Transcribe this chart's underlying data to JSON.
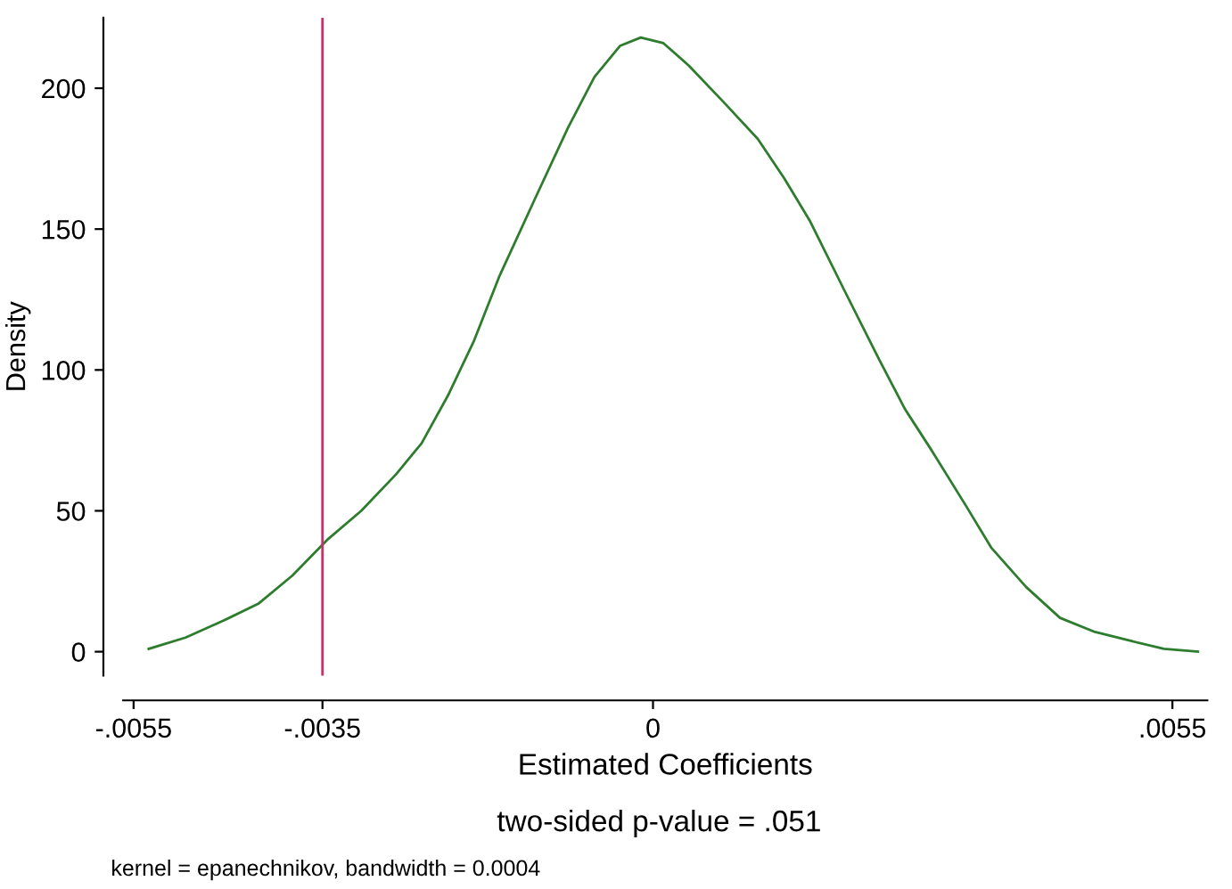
{
  "chart_data": {
    "type": "line",
    "xlabel": "Estimated Coefficients",
    "ylabel": "Density",
    "annotations": [
      "two-sided p-value = .051",
      "kernel = epanechnikov, bandwidth = 0.0004"
    ],
    "series": [
      {
        "color": "#2e7d2e",
        "x": [
          -0.00534,
          -0.00495,
          -0.00455,
          -0.00418,
          -0.00382,
          -0.00344,
          -0.00309,
          -0.00272,
          -0.00245,
          -0.00217,
          -0.0019,
          -0.00163,
          -0.00126,
          -0.0009,
          -0.00062,
          -0.00035,
          -0.00013,
          0.00011,
          0.00038,
          0.00075,
          0.00111,
          0.00139,
          0.00166,
          0.00203,
          0.00239,
          0.00267,
          0.00294,
          0.00331,
          0.00358,
          0.00395,
          0.00431,
          0.00468,
          0.00504,
          0.00541,
          0.00577
        ],
        "values": [
          1,
          5,
          11,
          17,
          27,
          40,
          50,
          63,
          74,
          91,
          110,
          133,
          160,
          186,
          204,
          215,
          218,
          216,
          208,
          195,
          182,
          168,
          153,
          128,
          104,
          86,
          72,
          52,
          37,
          23,
          12,
          7,
          4,
          1,
          0
        ]
      }
    ],
    "ref_lines": [
      {
        "axis": "x",
        "value": -0.0035,
        "color": "#c8306e"
      }
    ],
    "xlim": [
      -0.00561,
      0.00587
    ],
    "ylim": [
      -8.5,
      225
    ],
    "xticks": [
      {
        "value": -0.0055,
        "label": "-.0055"
      },
      {
        "value": -0.0035,
        "label": "-.0035"
      },
      {
        "value": 0,
        "label": "0"
      },
      {
        "value": 0.0055,
        "label": ".0055"
      }
    ],
    "yticks": [
      0,
      50,
      100,
      150,
      200
    ],
    "grid": false,
    "legend": false,
    "marker": "none",
    "line_style": "solid"
  }
}
